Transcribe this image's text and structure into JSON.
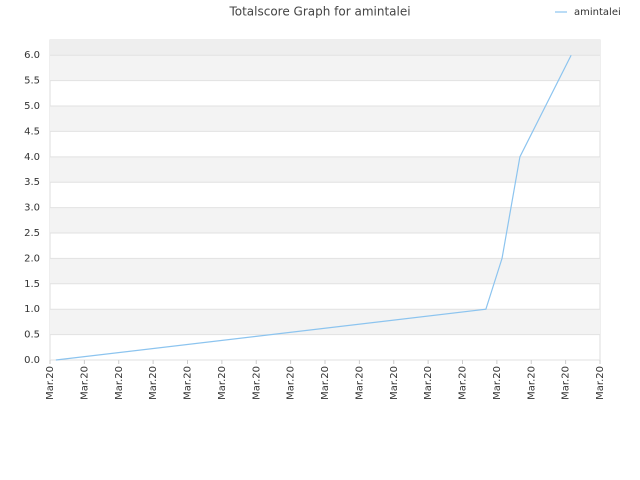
{
  "chart_data": {
    "type": "line",
    "title": "Totalscore Graph for amintalei",
    "series": [
      {
        "name": "amintalei",
        "color": "#8cc4ef",
        "x": [
          0.17,
          12.68,
          13.15,
          13.67,
          15.16
        ],
        "values": [
          0,
          1,
          2,
          4,
          6
        ]
      }
    ],
    "xlim": [
      0,
      16
    ],
    "xticks": [
      {
        "value": 0,
        "label": "Mar.20"
      },
      {
        "value": 1,
        "label": "Mar.20"
      },
      {
        "value": 2,
        "label": "Mar.20"
      },
      {
        "value": 3,
        "label": "Mar.20"
      },
      {
        "value": 4,
        "label": "Mar.20"
      },
      {
        "value": 5,
        "label": "Mar.20"
      },
      {
        "value": 6,
        "label": "Mar.20"
      },
      {
        "value": 7,
        "label": "Mar.20"
      },
      {
        "value": 8,
        "label": "Mar.20"
      },
      {
        "value": 9,
        "label": "Mar.20"
      },
      {
        "value": 10,
        "label": "Mar.20"
      },
      {
        "value": 11,
        "label": "Mar.20"
      },
      {
        "value": 12,
        "label": "Mar.20"
      },
      {
        "value": 13,
        "label": "Mar.20"
      },
      {
        "value": 14,
        "label": "Mar.20"
      },
      {
        "value": 15,
        "label": "Mar.20"
      },
      {
        "value": 16,
        "label": "Mar.20"
      }
    ],
    "ylim": [
      0,
      6.3
    ],
    "yticks": [
      {
        "value": 0,
        "label": "0.0"
      },
      {
        "value": 0.5,
        "label": "0.5"
      },
      {
        "value": 1,
        "label": "1.0"
      },
      {
        "value": 1.5,
        "label": "1.5"
      },
      {
        "value": 2,
        "label": "2.0"
      },
      {
        "value": 2.5,
        "label": "2.5"
      },
      {
        "value": 3,
        "label": "3.0"
      },
      {
        "value": 3.5,
        "label": "3.5"
      },
      {
        "value": 4,
        "label": "4.0"
      },
      {
        "value": 4.5,
        "label": "4.5"
      },
      {
        "value": 5,
        "label": "5.0"
      },
      {
        "value": 5.5,
        "label": "5.5"
      },
      {
        "value": 6,
        "label": "6.0"
      }
    ],
    "grid": true,
    "legend": "upper right"
  }
}
